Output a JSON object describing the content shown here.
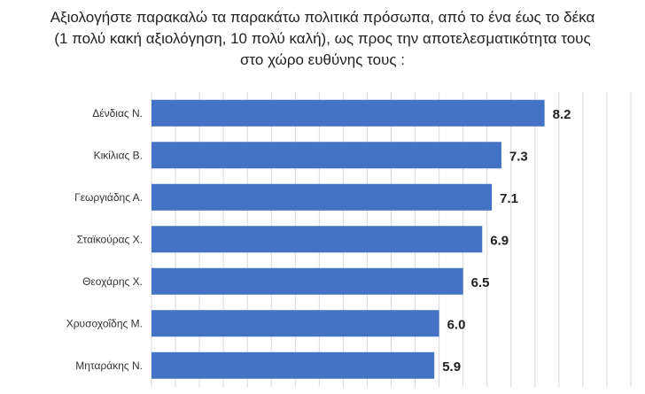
{
  "title_lines": [
    "Αξιολογήστε παρακαλώ τα παρακάτω πολιτικά πρόσωπα, από το ένα έως το δέκα",
    "(1 πολύ κακή αξιολόγηση, 10 πολύ καλή), ως προς την αποτελεσματικότητα τους",
    "στο χώρο ευθύνης τους :"
  ],
  "chart_data": {
    "type": "bar",
    "orientation": "horizontal",
    "title": "Αξιολογήστε παρακαλώ τα παρακάτω πολιτικά πρόσωπα, από το ένα έως το δέκα (1 πολύ κακή αξιολόγηση, 10 πολύ καλή), ως προς την αποτελεσματικότητα τους στο χώρο ευθύνης τους :",
    "categories": [
      "Δένδιας Ν.",
      "Κικίλιας Β.",
      "Γεωργιάδης Α.",
      "Σταϊκούρας Χ.",
      "Θεοχάρης Χ.",
      "Χρυσοχοΐδης Μ.",
      "Μηταράκης Ν."
    ],
    "values": [
      8.2,
      7.3,
      7.1,
      6.9,
      6.5,
      6.0,
      5.9
    ],
    "value_labels": [
      "8.2",
      "7.3",
      "7.1",
      "6.9",
      "6.5",
      "6.0",
      "5.9"
    ],
    "xlim": [
      0,
      10
    ],
    "grid": true,
    "bar_color": "#4472C4"
  }
}
